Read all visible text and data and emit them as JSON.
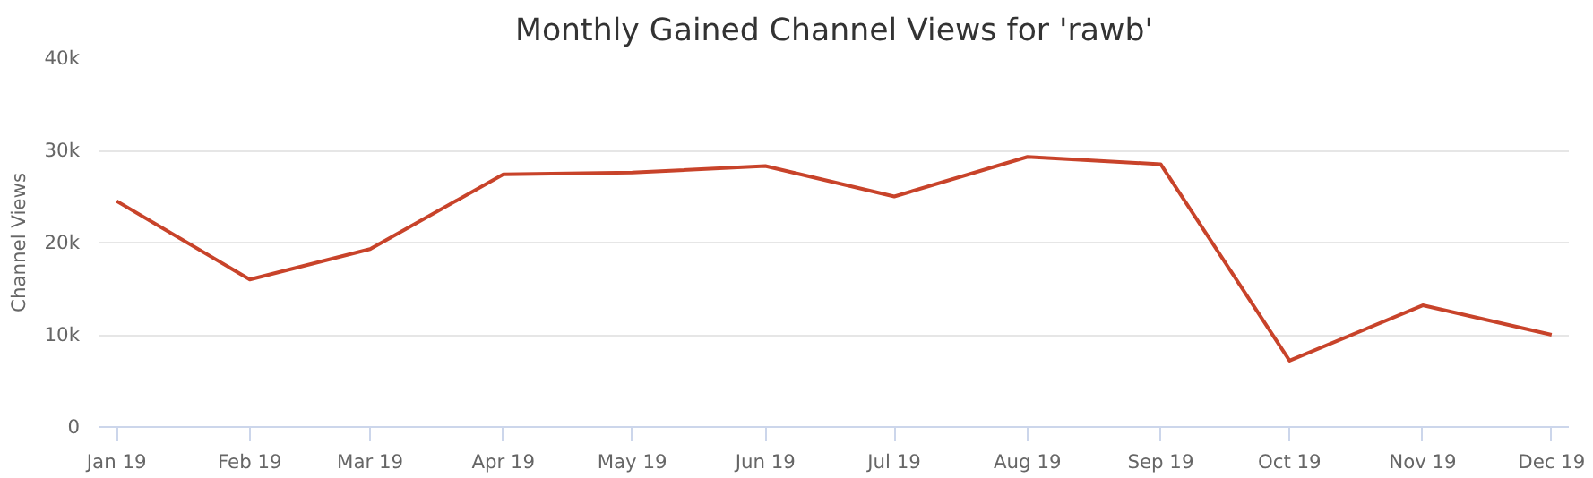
{
  "chart_data": {
    "type": "line",
    "title": "Monthly Gained Channel Views for 'rawb'",
    "ylabel": "Channel Views",
    "x": [
      "2019-01-01",
      "2019-02-01",
      "2019-03-01",
      "2019-04-01",
      "2019-05-01",
      "2019-06-01",
      "2019-07-01",
      "2019-08-01",
      "2019-09-01",
      "2019-10-01",
      "2019-11-01",
      "2019-12-01"
    ],
    "series": [
      {
        "color": "#c8432a",
        "values": [
          24500,
          16000,
          19300,
          27400,
          27600,
          28300,
          25000,
          29300,
          28500,
          7200,
          13200,
          10000
        ]
      }
    ],
    "xlim": [
      "2018-12-28",
      "2019-12-05"
    ],
    "xticks": [
      {
        "value": "2019-01-01",
        "label": "Jan 19"
      },
      {
        "value": "2019-02-01",
        "label": "Feb 19"
      },
      {
        "value": "2019-03-01",
        "label": "Mar 19"
      },
      {
        "value": "2019-04-01",
        "label": "Apr 19"
      },
      {
        "value": "2019-05-01",
        "label": "May 19"
      },
      {
        "value": "2019-06-01",
        "label": "Jun 19"
      },
      {
        "value": "2019-07-01",
        "label": "Jul 19"
      },
      {
        "value": "2019-08-01",
        "label": "Aug 19"
      },
      {
        "value": "2019-09-01",
        "label": "Sep 19"
      },
      {
        "value": "2019-10-01",
        "label": "Oct 19"
      },
      {
        "value": "2019-11-01",
        "label": "Nov 19"
      },
      {
        "value": "2019-12-01",
        "label": "Dec 19"
      }
    ],
    "ylim": [
      0,
      40000
    ],
    "yticks": [
      0,
      {
        "value": 10000,
        "label": "10k"
      },
      {
        "value": 20000,
        "label": "20k"
      },
      {
        "value": 30000,
        "label": "30k"
      },
      {
        "value": 40000,
        "label": "40k"
      }
    ],
    "grid": "y",
    "marker": "none",
    "line_style": "solid"
  }
}
